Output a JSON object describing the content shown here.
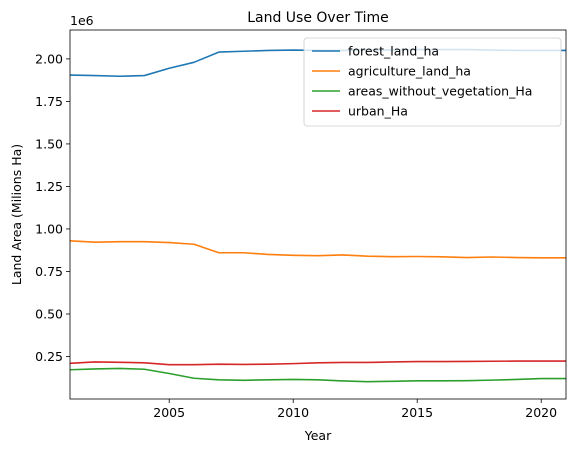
{
  "chart_data": {
    "type": "line",
    "title": "Land Use Over Time",
    "xlabel": "Year",
    "ylabel": "Land Area (Milions Ha)",
    "y_offset_label": "1e6",
    "xlim": [
      2001,
      2021
    ],
    "ylim": [
      0.0,
      2.17
    ],
    "x_ticks": [
      2005,
      2010,
      2015,
      2020
    ],
    "y_ticks": [
      0.25,
      0.5,
      0.75,
      1.0,
      1.25,
      1.5,
      1.75,
      2.0
    ],
    "y_tick_labels": [
      "0.25",
      "0.50",
      "0.75",
      "1.00",
      "1.25",
      "1.50",
      "1.75",
      "2.00"
    ],
    "grid": false,
    "legend_position": "top-right",
    "x": [
      2001,
      2002,
      2003,
      2004,
      2005,
      2006,
      2007,
      2008,
      2009,
      2010,
      2011,
      2012,
      2013,
      2014,
      2015,
      2016,
      2017,
      2018,
      2019,
      2020,
      2021
    ],
    "series": [
      {
        "name": "forest_land_ha",
        "color": "#1f77b4",
        "values": [
          1.905,
          1.902,
          1.898,
          1.902,
          1.945,
          1.98,
          2.04,
          2.045,
          2.05,
          2.052,
          2.05,
          2.05,
          2.052,
          2.052,
          2.055,
          2.055,
          2.055,
          2.052,
          2.05,
          2.05,
          2.05
        ]
      },
      {
        "name": "agriculture_land_ha",
        "color": "#ff7f0e",
        "values": [
          0.93,
          0.922,
          0.925,
          0.925,
          0.92,
          0.91,
          0.86,
          0.86,
          0.85,
          0.845,
          0.843,
          0.847,
          0.84,
          0.837,
          0.838,
          0.836,
          0.832,
          0.835,
          0.832,
          0.83,
          0.83
        ]
      },
      {
        "name": "areas_without_vegetation_Ha",
        "color": "#2ca02c",
        "values": [
          0.172,
          0.177,
          0.18,
          0.175,
          0.15,
          0.122,
          0.113,
          0.11,
          0.113,
          0.115,
          0.113,
          0.106,
          0.102,
          0.104,
          0.107,
          0.107,
          0.108,
          0.111,
          0.115,
          0.12,
          0.12
        ]
      },
      {
        "name": "urban_Ha",
        "color": "#d62728",
        "values": [
          0.21,
          0.218,
          0.216,
          0.213,
          0.202,
          0.202,
          0.205,
          0.203,
          0.205,
          0.208,
          0.213,
          0.215,
          0.215,
          0.218,
          0.22,
          0.22,
          0.221,
          0.222,
          0.223,
          0.223,
          0.223
        ]
      }
    ]
  }
}
